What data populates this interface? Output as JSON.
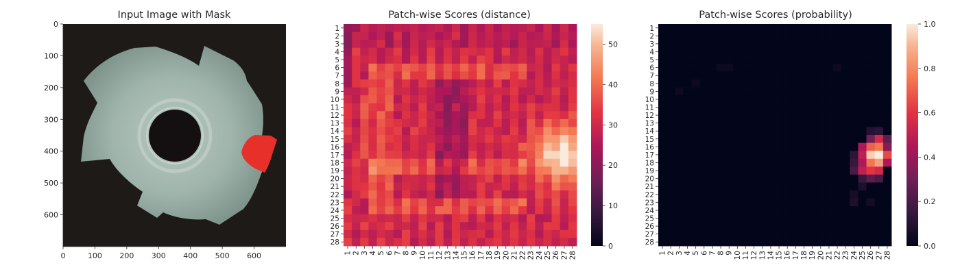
{
  "chart_data": [
    {
      "type": "image",
      "title": "Input Image with Mask",
      "xlim": [
        0,
        700
      ],
      "ylim": [
        700,
        0
      ],
      "xticks": [
        0,
        100,
        200,
        300,
        400,
        500,
        600
      ],
      "yticks": [
        0,
        100,
        200,
        300,
        400,
        500,
        600
      ],
      "grid": false,
      "colors": {
        "background": "#1e1a18",
        "part": "#9fb2aa",
        "hole": "#141011",
        "mask": "#e8302a"
      }
    },
    {
      "type": "heatmap",
      "title": "Patch-wise Scores (distance)",
      "rows": [
        "1",
        "2",
        "3",
        "4",
        "5",
        "6",
        "7",
        "8",
        "9",
        "10",
        "11",
        "12",
        "13",
        "14",
        "15",
        "16",
        "17",
        "18",
        "19",
        "20",
        "21",
        "22",
        "23",
        "24",
        "25",
        "26",
        "27",
        "28"
      ],
      "cols": [
        "1",
        "2",
        "3",
        "4",
        "5",
        "6",
        "7",
        "8",
        "9",
        "10",
        "11",
        "12",
        "13",
        "14",
        "15",
        "16",
        "17",
        "18",
        "19",
        "20",
        "21",
        "22",
        "23",
        "24",
        "25",
        "26",
        "27",
        "28"
      ],
      "vmin": 0,
      "vmax": 55,
      "colorbar_ticks": [
        0,
        10,
        20,
        30,
        40,
        50
      ],
      "colormap": "rocket",
      "regions": {
        "base_value": 30,
        "hot_spot": {
          "row": 17,
          "col": 27,
          "peak": 55
        },
        "high_ring_rows": [
          6,
          7,
          18,
          19,
          23,
          24
        ],
        "low_band_cols": [
          12,
          13,
          14,
          15
        ]
      }
    },
    {
      "type": "heatmap",
      "title": "Patch-wise Scores (probability)",
      "rows": [
        "1",
        "2",
        "3",
        "4",
        "5",
        "6",
        "7",
        "8",
        "9",
        "10",
        "11",
        "12",
        "13",
        "14",
        "15",
        "16",
        "17",
        "18",
        "19",
        "20",
        "21",
        "22",
        "23",
        "24",
        "25",
        "26",
        "27",
        "28"
      ],
      "cols": [
        "1",
        "2",
        "3",
        "4",
        "5",
        "6",
        "7",
        "8",
        "9",
        "10",
        "11",
        "12",
        "13",
        "14",
        "15",
        "16",
        "17",
        "18",
        "19",
        "20",
        "21",
        "22",
        "23",
        "24",
        "25",
        "26",
        "27",
        "28"
      ],
      "vmin": 0,
      "vmax": 1.0,
      "colorbar_ticks": [
        "0.0",
        "0.2",
        "0.4",
        "0.6",
        "0.8",
        "1.0"
      ],
      "colormap": "rocket",
      "regions": {
        "hot_cells": [
          {
            "row": 15,
            "col": 27,
            "value": 0.55
          },
          {
            "row": 16,
            "col": 26,
            "value": 0.7
          },
          {
            "row": 16,
            "col": 27,
            "value": 0.75
          },
          {
            "row": 17,
            "col": 26,
            "value": 0.95
          },
          {
            "row": 17,
            "col": 27,
            "value": 1.0
          },
          {
            "row": 17,
            "col": 28,
            "value": 0.65
          },
          {
            "row": 18,
            "col": 26,
            "value": 0.75
          },
          {
            "row": 18,
            "col": 27,
            "value": 0.85
          },
          {
            "row": 18,
            "col": 28,
            "value": 0.45
          },
          {
            "row": 19,
            "col": 25,
            "value": 0.5
          },
          {
            "row": 19,
            "col": 26,
            "value": 0.6
          },
          {
            "row": 19,
            "col": 27,
            "value": 0.55
          },
          {
            "row": 16,
            "col": 25,
            "value": 0.45
          },
          {
            "row": 17,
            "col": 25,
            "value": 0.5
          },
          {
            "row": 18,
            "col": 25,
            "value": 0.45
          },
          {
            "row": 15,
            "col": 26,
            "value": 0.3
          },
          {
            "row": 15,
            "col": 28,
            "value": 0.25
          },
          {
            "row": 16,
            "col": 28,
            "value": 0.35
          },
          {
            "row": 20,
            "col": 26,
            "value": 0.25
          },
          {
            "row": 20,
            "col": 27,
            "value": 0.2
          },
          {
            "row": 20,
            "col": 25,
            "value": 0.15
          },
          {
            "row": 19,
            "col": 24,
            "value": 0.2
          },
          {
            "row": 18,
            "col": 24,
            "value": 0.15
          },
          {
            "row": 17,
            "col": 24,
            "value": 0.12
          },
          {
            "row": 14,
            "col": 26,
            "value": 0.1
          },
          {
            "row": 14,
            "col": 27,
            "value": 0.12
          },
          {
            "row": 21,
            "col": 25,
            "value": 0.08
          },
          {
            "row": 22,
            "col": 24,
            "value": 0.06
          },
          {
            "row": 23,
            "col": 24,
            "value": 0.08
          },
          {
            "row": 23,
            "col": 26,
            "value": 0.05
          }
        ]
      }
    }
  ]
}
